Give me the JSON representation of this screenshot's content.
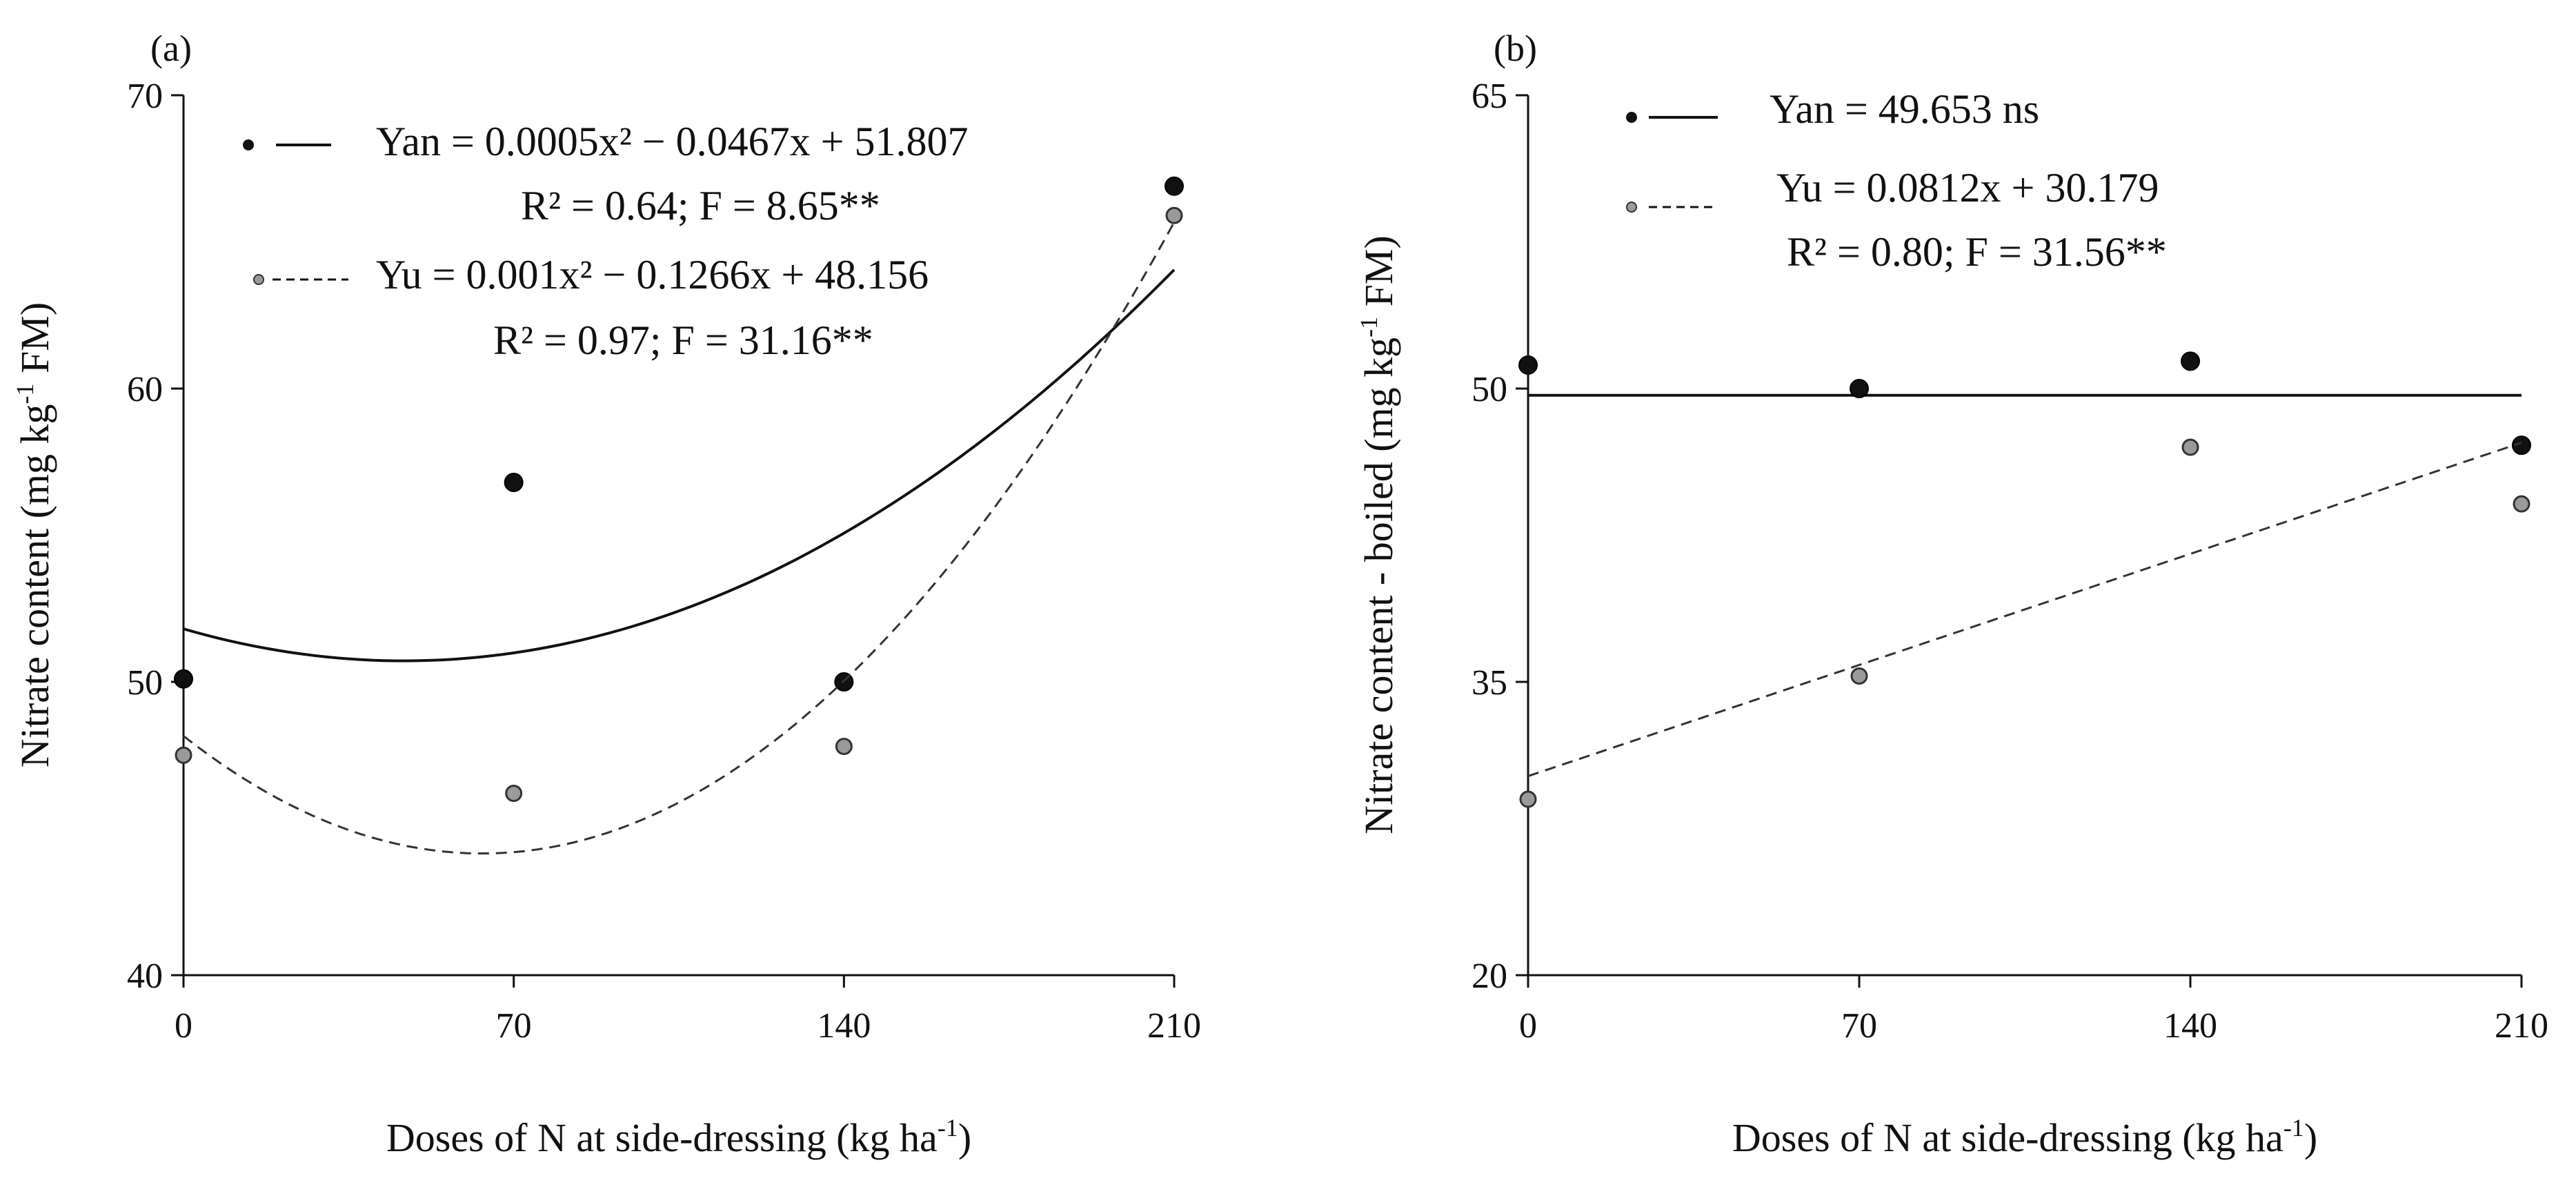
{
  "chart_data": [
    {
      "type": "scatter",
      "panel_label": "(a)",
      "xlabel": "Doses of N at side-dressing (kg ha-1)",
      "xlabel_parts": {
        "main": "Doses of N at side-dressing (kg ha",
        "sup": "-1",
        "end": ")"
      },
      "ylabel": "Nitrate content (mg kg-1 FM)",
      "ylabel_parts": {
        "main": "Nitrate content (mg kg",
        "sup": "-1",
        "end": " FM)"
      },
      "xlim": [
        0,
        210
      ],
      "ylim": [
        40,
        70
      ],
      "x_ticks": [
        0,
        70,
        140,
        210
      ],
      "y_ticks": [
        40,
        50,
        60,
        70
      ],
      "series": [
        {
          "name": "Yan",
          "marker": "filled-black",
          "line_style": "solid",
          "x": [
            0,
            70,
            140,
            210
          ],
          "values": [
            50.1,
            56.8,
            50.0,
            66.9
          ],
          "fit": {
            "kind": "quadratic",
            "coefficients": [
              0.0005,
              -0.0467,
              51.807
            ]
          },
          "equation": "Yan = 0.0005x² − 0.0467x + 51.807",
          "stats": "R² = 0.64; F = 8.65**"
        },
        {
          "name": "Yu",
          "marker": "open-gray",
          "line_style": "dashed",
          "x": [
            0,
            70,
            140,
            210
          ],
          "values": [
            47.5,
            46.2,
            47.8,
            65.9
          ],
          "fit": {
            "kind": "quadratic",
            "coefficients": [
              0.001,
              -0.1266,
              48.156
            ]
          },
          "equation": "Yu = 0.001x² − 0.1266x + 48.156",
          "stats": "R² = 0.97; F = 31.16**"
        }
      ]
    },
    {
      "type": "scatter",
      "panel_label": "(b)",
      "xlabel": "Doses of N at side-dressing (kg ha-1)",
      "xlabel_parts": {
        "main": "Doses of N at side-dressing (kg ha",
        "sup": "-1",
        "end": ")"
      },
      "ylabel": "Nitrate content - boiled (mg kg-1 FM)",
      "ylabel_parts": {
        "main": "Nitrate content - boiled (mg kg",
        "sup": "-1",
        "end": " FM)"
      },
      "xlim": [
        0,
        210
      ],
      "ylim": [
        20,
        65
      ],
      "x_ticks": [
        0,
        70,
        140,
        210
      ],
      "y_ticks": [
        20,
        35,
        50,
        65
      ],
      "series": [
        {
          "name": "Yan",
          "marker": "filled-black",
          "line_style": "solid",
          "x": [
            0,
            70,
            140,
            210
          ],
          "values": [
            51.2,
            50.0,
            51.4,
            47.1
          ],
          "fit": {
            "kind": "constant",
            "coefficients": [
              49.653
            ]
          },
          "equation": "Yan = 49.653 ns",
          "stats": ""
        },
        {
          "name": "Yu",
          "marker": "open-gray",
          "line_style": "dashed",
          "x": [
            0,
            70,
            140,
            210
          ],
          "values": [
            29.0,
            35.3,
            47.0,
            44.1
          ],
          "fit": {
            "kind": "linear",
            "coefficients": [
              0.0812,
              30.179
            ]
          },
          "equation": "Yu = 0.0812x + 30.179",
          "stats": "R² = 0.80; F = 31.56**"
        }
      ]
    }
  ]
}
